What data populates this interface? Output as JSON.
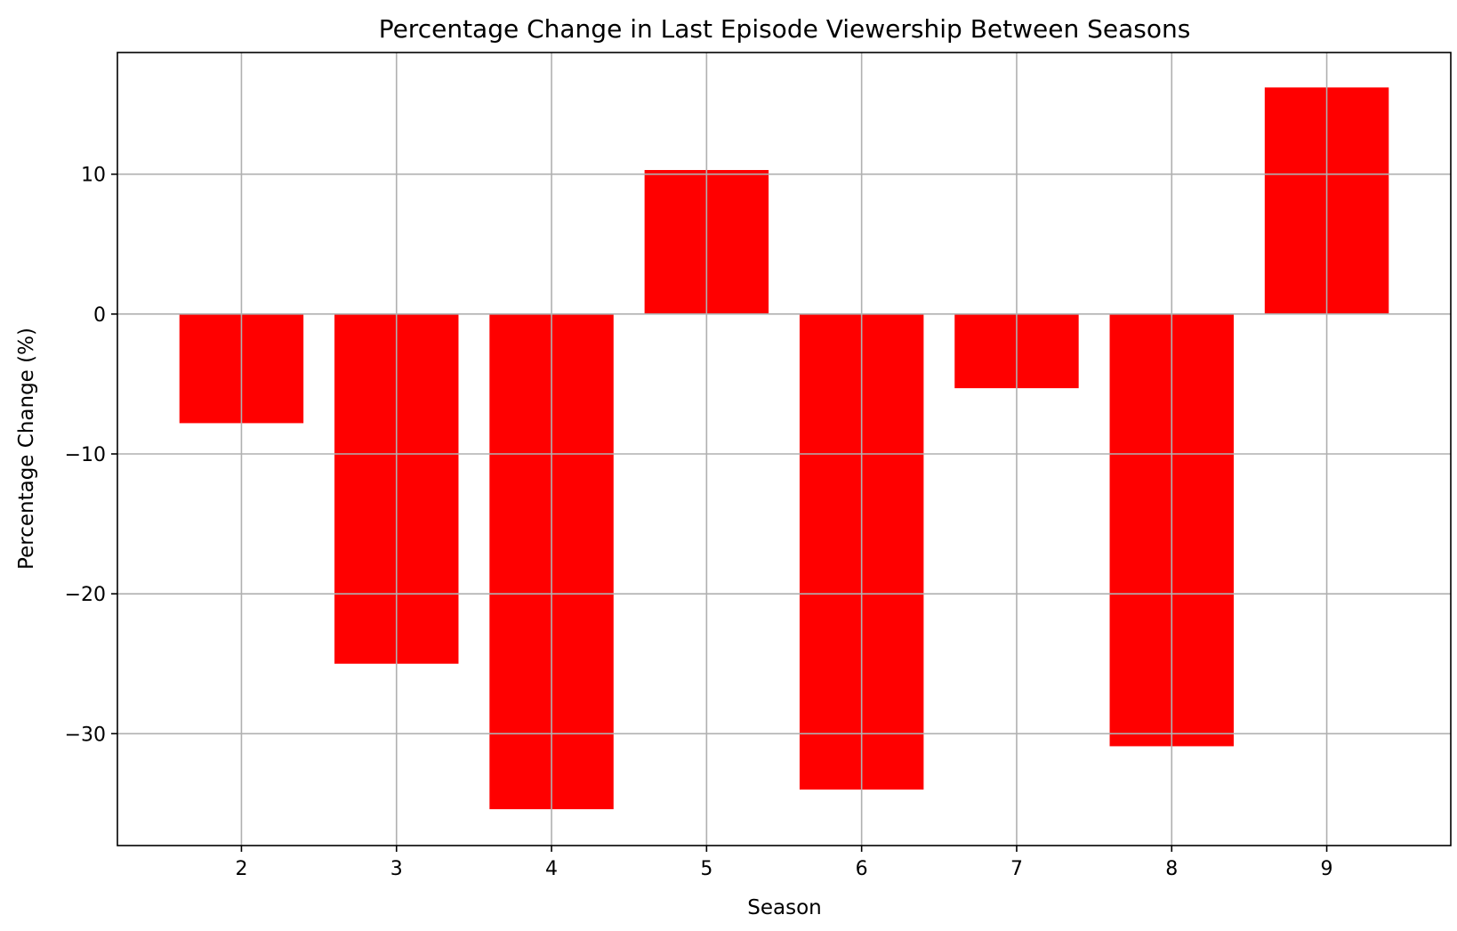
{
  "chart_data": {
    "type": "bar",
    "title": "Percentage Change in Last Episode Viewership Between Seasons",
    "xlabel": "Season",
    "ylabel": "Percentage Change (%)",
    "categories": [
      "2",
      "3",
      "4",
      "5",
      "6",
      "7",
      "8",
      "9"
    ],
    "values": [
      -7.8,
      -25.0,
      -35.4,
      10.3,
      -34.0,
      -5.3,
      -30.9,
      16.2
    ],
    "yticks": [
      10,
      0,
      -10,
      -20,
      -30
    ],
    "ytick_labels": [
      "10",
      "0",
      "−10",
      "−20",
      "−30"
    ],
    "ylim": [
      -38.0,
      18.7
    ],
    "xlim": [
      1.2,
      9.8
    ],
    "grid": true,
    "bar_color": "#ff0000"
  }
}
